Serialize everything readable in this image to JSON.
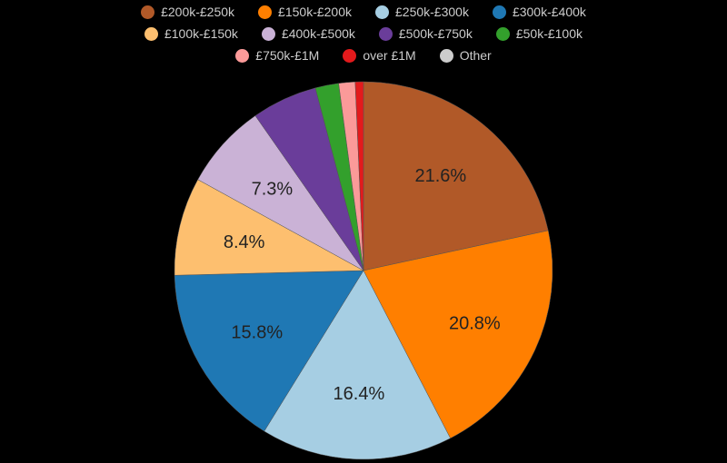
{
  "chart_data": {
    "type": "pie",
    "title": "",
    "legend_position": "top",
    "slices": [
      {
        "label": "£200k-£250k",
        "value": 21.6,
        "color": "#b15928",
        "show_label": true
      },
      {
        "label": "£150k-£200k",
        "value": 20.8,
        "color": "#ff7f00",
        "show_label": true
      },
      {
        "label": "£250k-£300k",
        "value": 16.4,
        "color": "#a6cee3",
        "show_label": true
      },
      {
        "label": "£300k-£400k",
        "value": 15.8,
        "color": "#1f78b4",
        "show_label": true
      },
      {
        "label": "£100k-£150k",
        "value": 8.4,
        "color": "#fdbf6f",
        "show_label": true
      },
      {
        "label": "£400k-£500k",
        "value": 7.3,
        "color": "#cab2d6",
        "show_label": true
      },
      {
        "label": "£500k-£750k",
        "value": 5.6,
        "color": "#6a3d9a",
        "show_label": false
      },
      {
        "label": "£50k-£100k",
        "value": 2.0,
        "color": "#33a02c",
        "show_label": false
      },
      {
        "label": "£750k-£1M",
        "value": 1.4,
        "color": "#fb9a99",
        "show_label": false
      },
      {
        "label": "over £1M",
        "value": 0.7,
        "color": "#e31a1c",
        "show_label": false
      },
      {
        "label": "Other",
        "value": 0.0,
        "color": "#cccccc",
        "show_label": false
      }
    ]
  },
  "legend": {
    "rows": [
      [
        0,
        1,
        2,
        3
      ],
      [
        4,
        5,
        6,
        7
      ],
      [
        8,
        9,
        10
      ]
    ]
  }
}
